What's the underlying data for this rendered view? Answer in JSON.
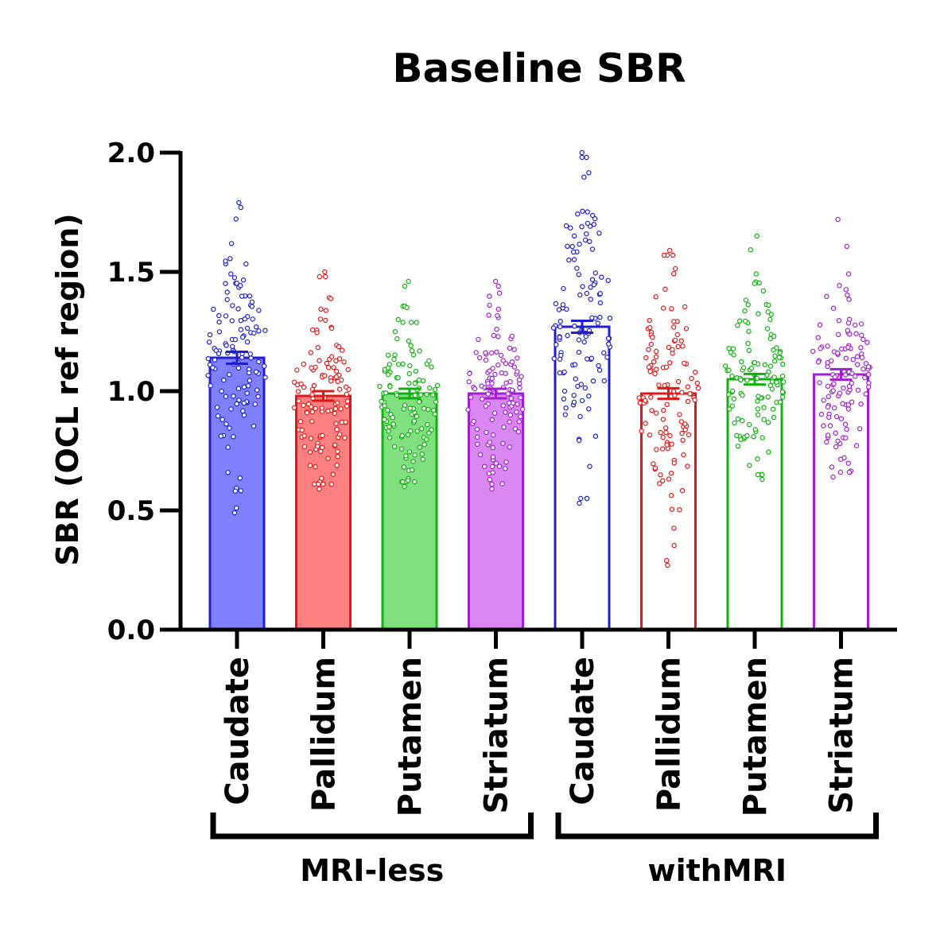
{
  "chart_data": {
    "type": "bar",
    "title": "Baseline SBR",
    "ylabel": "SBR (OCL ref region)",
    "xlabel": "",
    "ylim": [
      0,
      2.0
    ],
    "yticks": [
      0.0,
      0.5,
      1.0,
      1.5,
      2.0
    ],
    "ytick_labels": [
      "0.0",
      "0.5",
      "1.0",
      "1.5",
      "2.0"
    ],
    "grid": false,
    "error_bars": "SEM",
    "categories": [
      "Caudate",
      "Pallidum",
      "Putamen",
      "Striatum",
      "Caudate",
      "Pallidum",
      "Putamen",
      "Striatum"
    ],
    "groups": [
      {
        "label": "MRI-less",
        "categories": [
          0,
          1,
          2,
          3
        ]
      },
      {
        "label": "withMRI",
        "categories": [
          4,
          5,
          6,
          7
        ]
      }
    ],
    "bars": [
      {
        "category": "Caudate",
        "group": "MRI-less",
        "mean": 1.14,
        "sem": 0.025,
        "color": "#1f1fd0",
        "fill": "#8080ff",
        "filled": true,
        "min": 0.49,
        "max": 1.79,
        "n": 120
      },
      {
        "category": "Pallidum",
        "group": "MRI-less",
        "mean": 0.98,
        "sem": 0.02,
        "color": "#e01818",
        "fill": "#ff8080",
        "filled": true,
        "min": 0.59,
        "max": 1.5,
        "n": 120
      },
      {
        "category": "Putamen",
        "group": "MRI-less",
        "mean": 0.99,
        "sem": 0.02,
        "color": "#10b010",
        "fill": "#80e080",
        "filled": true,
        "min": 0.6,
        "max": 1.46,
        "n": 120
      },
      {
        "category": "Striatum",
        "group": "MRI-less",
        "mean": 0.99,
        "sem": 0.02,
        "color": "#a020d0",
        "fill": "#d888f0",
        "filled": true,
        "min": 0.59,
        "max": 1.46,
        "n": 120
      },
      {
        "category": "Caudate",
        "group": "withMRI",
        "mean": 1.27,
        "sem": 0.025,
        "color": "#1f1fd0",
        "fill": "#ffffff",
        "filled": false,
        "min": 0.53,
        "max": 2.0,
        "n": 120
      },
      {
        "category": "Pallidum",
        "group": "withMRI",
        "mean": 0.99,
        "sem": 0.022,
        "color": "#e01818",
        "fill": "#ffffff",
        "filled": false,
        "min": 0.27,
        "max": 1.59,
        "n": 120
      },
      {
        "category": "Putamen",
        "group": "withMRI",
        "mean": 1.05,
        "sem": 0.022,
        "color": "#10b010",
        "fill": "#ffffff",
        "filled": false,
        "min": 0.63,
        "max": 1.65,
        "n": 120
      },
      {
        "category": "Striatum",
        "group": "withMRI",
        "mean": 1.07,
        "sem": 0.022,
        "color": "#a020d0",
        "fill": "#ffffff",
        "filled": false,
        "min": 0.64,
        "max": 1.72,
        "n": 120
      }
    ]
  }
}
